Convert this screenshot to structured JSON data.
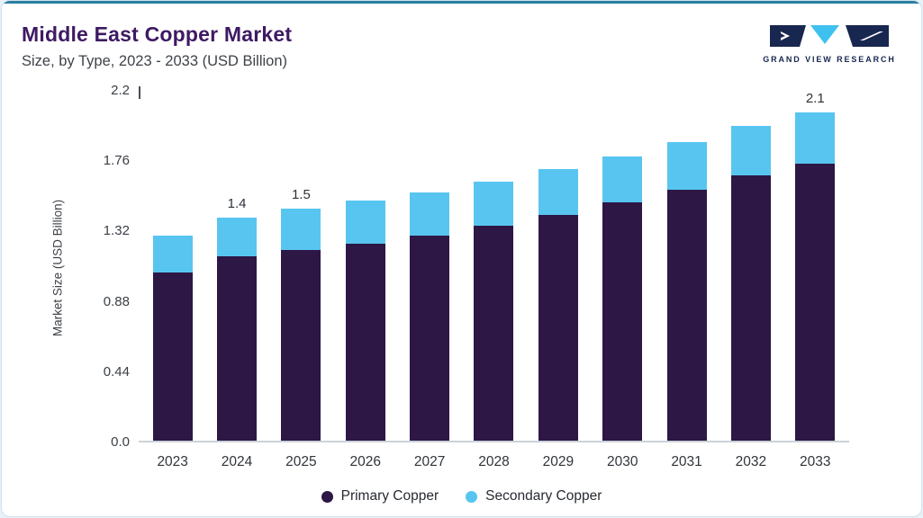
{
  "header": {
    "title": "Middle East Copper Market",
    "subtitle": "Size, by Type, 2023 - 2033 (USD Billion)",
    "logo_text": "GRAND VIEW RESEARCH"
  },
  "colors": {
    "primary_series": "#2d1745",
    "secondary_series": "#58c5f0",
    "title_purple": "#3e1a63",
    "accent_line": "#2b7ea1",
    "logo_navy": "#18274f",
    "logo_cyan": "#3fc1ef",
    "page_background": "#e8f1f8",
    "card_background": "#ffffff"
  },
  "chart_data": {
    "type": "bar",
    "stacked": true,
    "title": "Middle East Copper Market",
    "subtitle": "Size, by Type, 2023 - 2033 (USD Billion)",
    "xlabel": "",
    "ylabel": "Market Size (USD Billion)",
    "ylim": [
      0,
      2.2
    ],
    "yticks": [
      0,
      0.44,
      0.88,
      1.32,
      1.76,
      2.2
    ],
    "ytick_labels": [
      "0.0",
      "0.44",
      "0.88",
      "1.32",
      "1.76",
      "2.2"
    ],
    "grid": false,
    "legend_position": "bottom",
    "categories": [
      "2023",
      "2024",
      "2025",
      "2026",
      "2027",
      "2028",
      "2029",
      "2030",
      "2031",
      "2032",
      "2033"
    ],
    "series": [
      {
        "name": "Primary Copper",
        "color": "#2d1745",
        "values": [
          1.06,
          1.16,
          1.2,
          1.24,
          1.29,
          1.35,
          1.42,
          1.5,
          1.58,
          1.67,
          1.77
        ]
      },
      {
        "name": "Secondary Copper",
        "color": "#58c5f0",
        "values": [
          0.23,
          0.24,
          0.26,
          0.27,
          0.27,
          0.28,
          0.29,
          0.29,
          0.3,
          0.31,
          0.33
        ]
      }
    ],
    "data_labels": [
      "",
      "1.4",
      "1.5",
      "",
      "",
      "",
      "",
      "",
      "",
      "",
      "2.1"
    ]
  }
}
